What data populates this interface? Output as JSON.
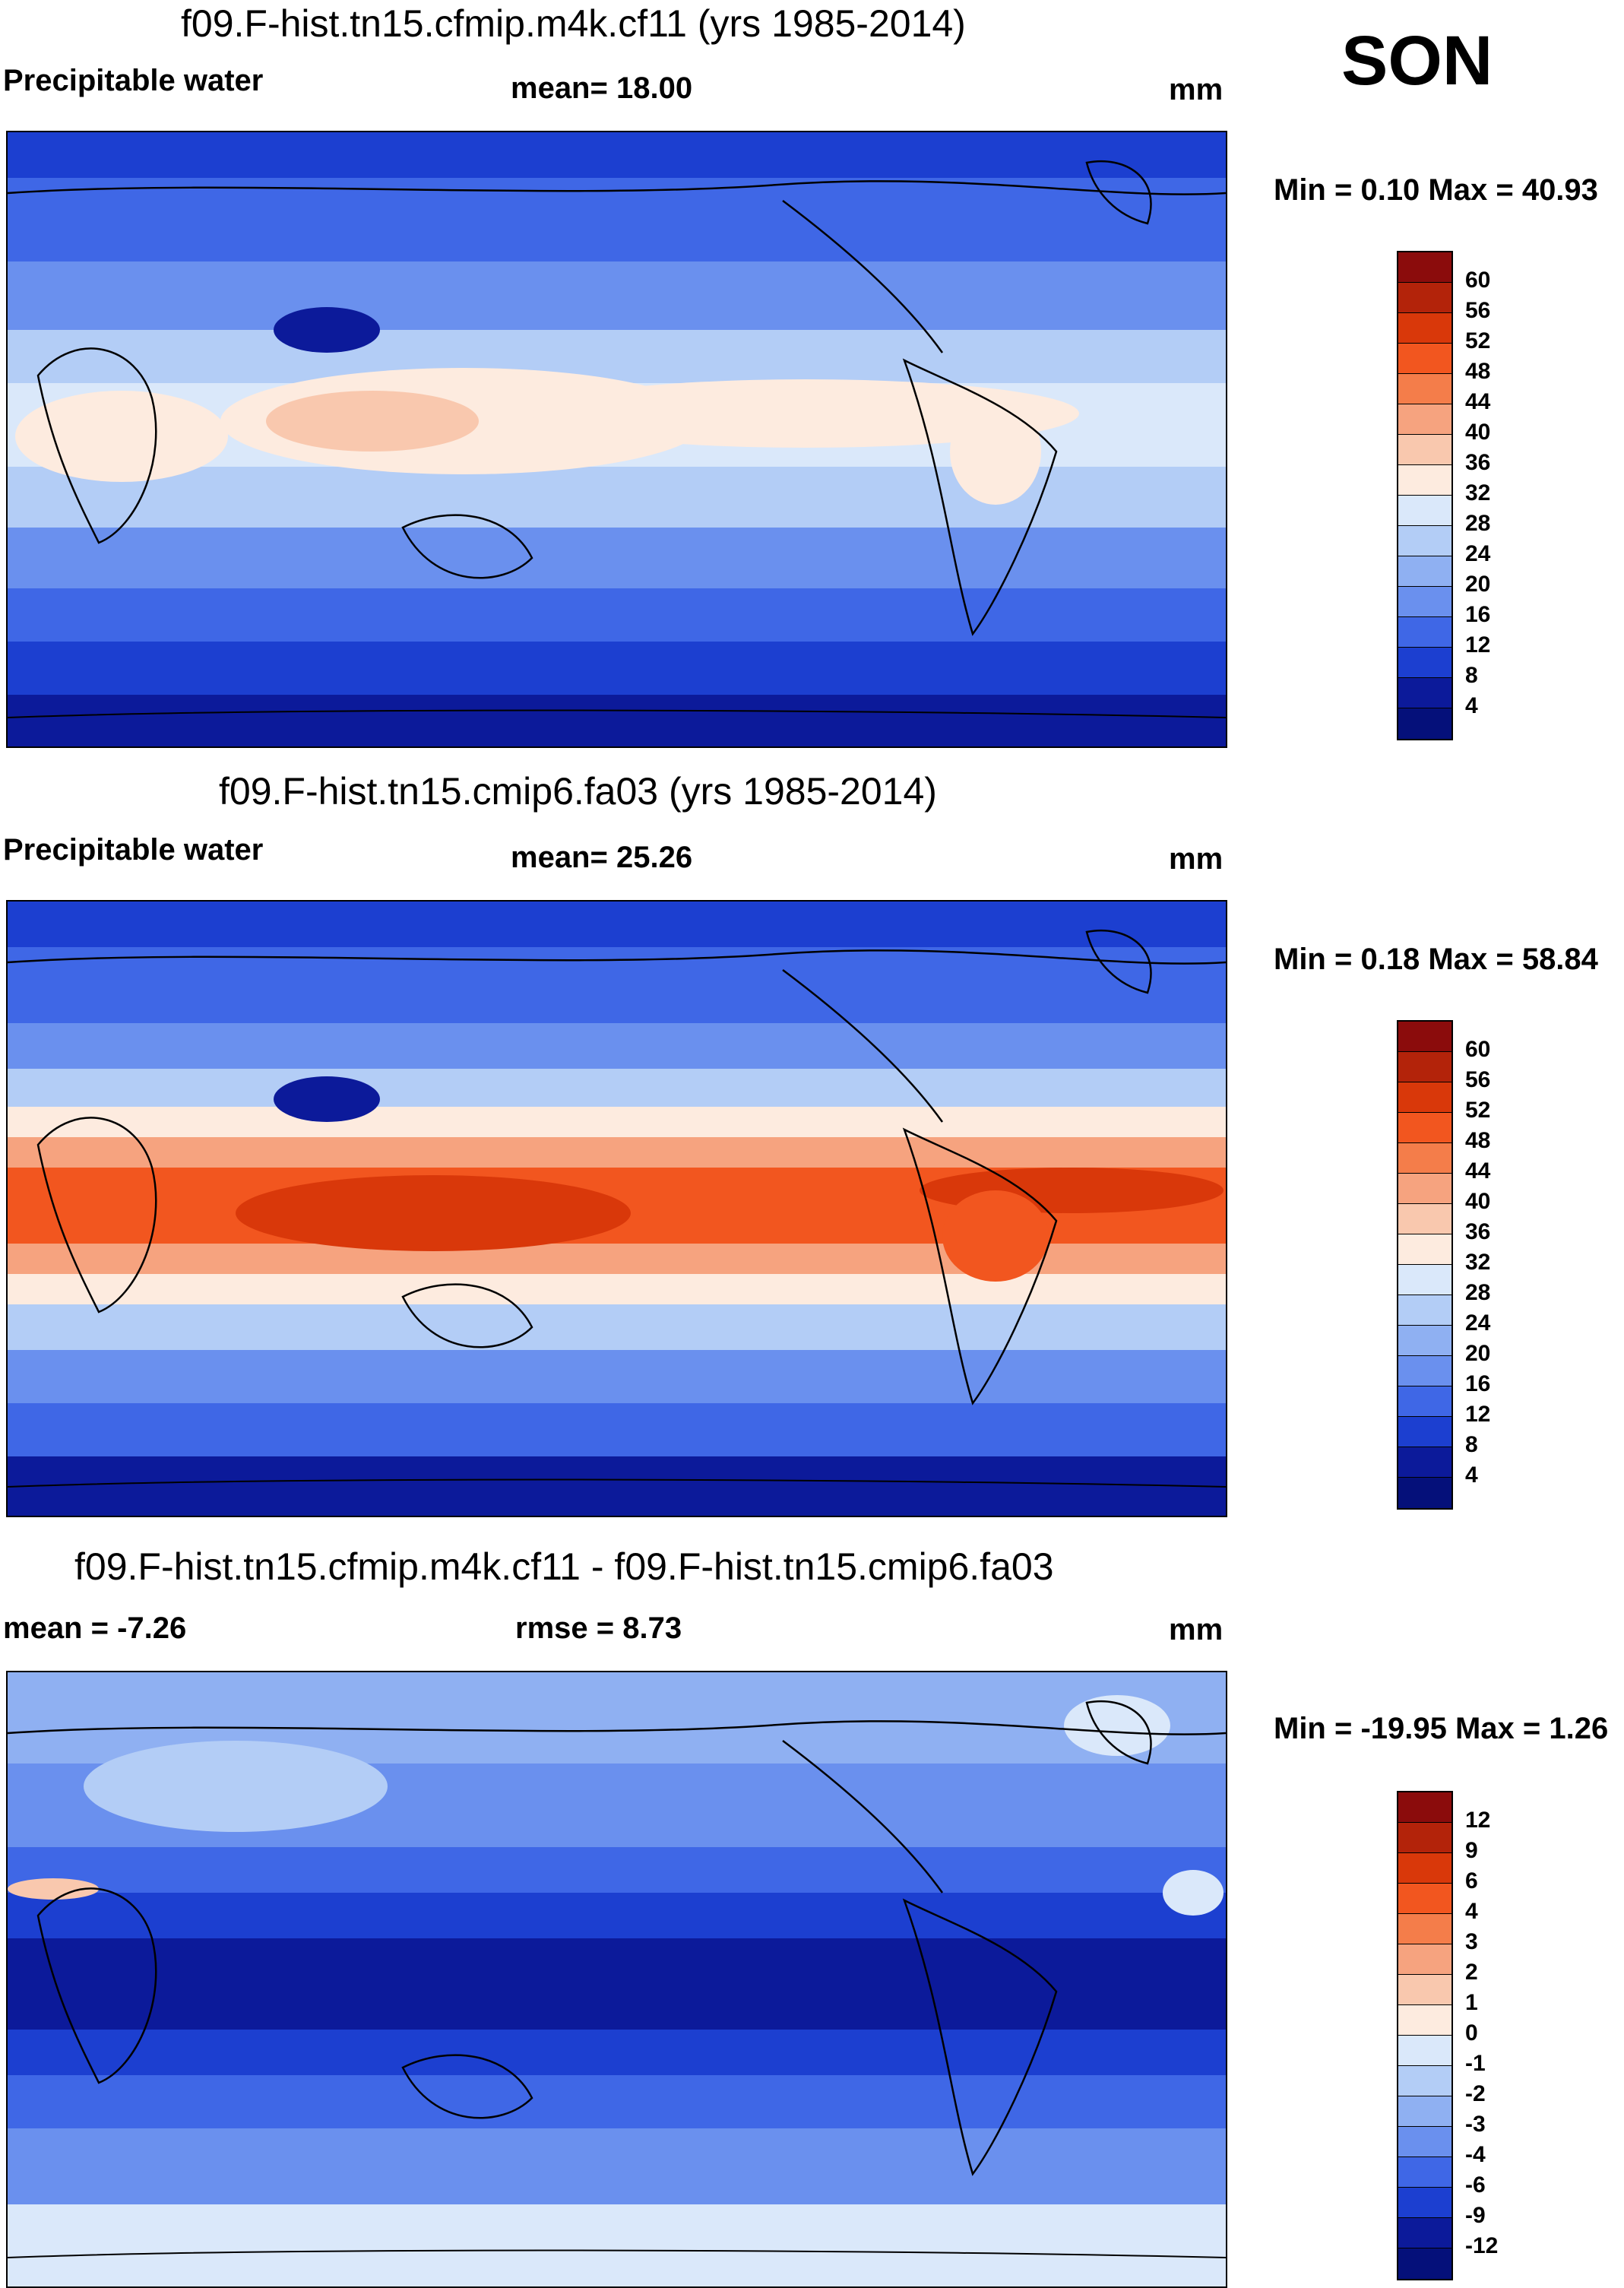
{
  "season": "SON",
  "panels": [
    {
      "id": "p1",
      "title": "f09.F-hist.tn15.cfmip.m4k.cf11 (yrs 1985-2014)",
      "left_label": "Precipitable water",
      "center_label": "mean=  18.00",
      "units": "mm",
      "minmax": "Min =   0.10 Max =  40.93",
      "colorbar": {
        "levels": [
          "60",
          "56",
          "52",
          "48",
          "44",
          "40",
          "36",
          "32",
          "28",
          "24",
          "20",
          "16",
          "12",
          "8",
          "4"
        ],
        "colors": [
          "#8b0c0c",
          "#b3230a",
          "#d9380a",
          "#f2561f",
          "#f47d4a",
          "#f6a37f",
          "#f9c8ae",
          "#fdebdf",
          "#dae8fa",
          "#b3cdf6",
          "#8fb0f2",
          "#6a90ee",
          "#3f67e6",
          "#1c3fd0",
          "#0c1a9a",
          "#05107a"
        ]
      }
    },
    {
      "id": "p2",
      "title": "f09.F-hist.tn15.cmip6.fa03 (yrs 1985-2014)",
      "left_label": "Precipitable water",
      "center_label": "mean=  25.26",
      "units": "mm",
      "minmax": "Min =   0.18 Max =  58.84",
      "colorbar": {
        "levels": [
          "60",
          "56",
          "52",
          "48",
          "44",
          "40",
          "36",
          "32",
          "28",
          "24",
          "20",
          "16",
          "12",
          "8",
          "4"
        ],
        "colors": [
          "#8b0c0c",
          "#b3230a",
          "#d9380a",
          "#f2561f",
          "#f47d4a",
          "#f6a37f",
          "#f9c8ae",
          "#fdebdf",
          "#dae8fa",
          "#b3cdf6",
          "#8fb0f2",
          "#6a90ee",
          "#3f67e6",
          "#1c3fd0",
          "#0c1a9a",
          "#05107a"
        ]
      }
    },
    {
      "id": "p3",
      "title": "f09.F-hist.tn15.cfmip.m4k.cf11 - f09.F-hist.tn15.cmip6.fa03",
      "left_label": "mean =  -7.26",
      "center_label": "rmse =    8.73",
      "units": "mm",
      "minmax": "Min = -19.95 Max =   1.26",
      "colorbar": {
        "levels": [
          "12",
          "9",
          "6",
          "4",
          "3",
          "2",
          "1",
          "0",
          "-1",
          "-2",
          "-3",
          "-4",
          "-6",
          "-9",
          "-12"
        ],
        "colors": [
          "#8b0c0c",
          "#b3230a",
          "#d9380a",
          "#f2561f",
          "#f47d4a",
          "#f6a37f",
          "#f9c8ae",
          "#fdebdf",
          "#dae8fa",
          "#b3cdf6",
          "#8fb0f2",
          "#6a90ee",
          "#3f67e6",
          "#1c3fd0",
          "#0c1a9a",
          "#05107a"
        ]
      }
    }
  ]
}
